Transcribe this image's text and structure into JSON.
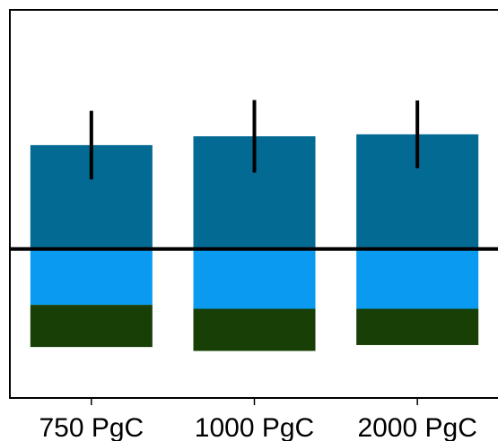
{
  "chart_data": {
    "type": "bar",
    "stacked": "diverging",
    "categories": [
      "750 PgC",
      "1000 PgC",
      "2000 PgC"
    ],
    "series": [
      {
        "name": "",
        "color": "#036a93",
        "values": [
          0.53,
          0.575,
          0.585
        ],
        "error_bar": [
          0.35,
          0.37,
          0.345
        ]
      },
      {
        "name": "",
        "color": "#0a9af0",
        "values": [
          -0.285,
          -0.305,
          -0.305
        ]
      },
      {
        "name": "",
        "color": "#183f05",
        "values": [
          -0.215,
          -0.215,
          -0.185
        ]
      }
    ],
    "zero_line": 0,
    "ylim": [
      -0.76,
      1.22
    ],
    "title": "",
    "xlabel": "",
    "ylabel": "",
    "grid": false,
    "axes_color": "#000000"
  }
}
